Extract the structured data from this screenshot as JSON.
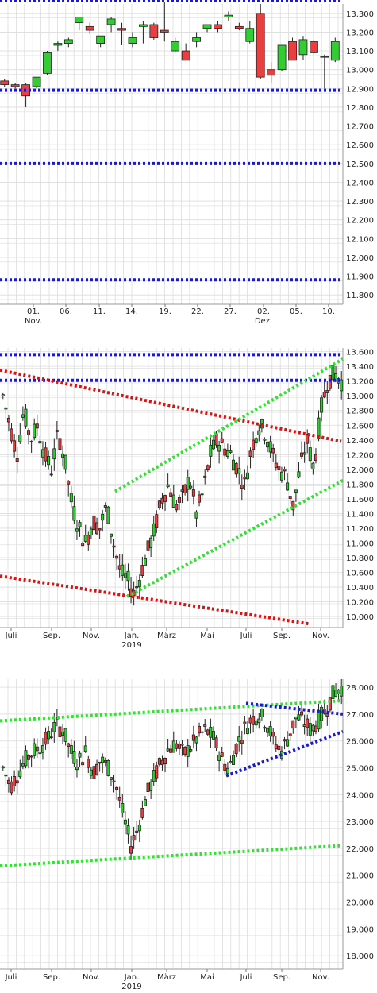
{
  "colors": {
    "up": "#33cc33",
    "down": "#e84040",
    "blue": "#1a1acc",
    "red": "#e01010",
    "green": "#33e033",
    "grid": "#dcdcdc"
  },
  "chart_data": [
    {
      "type": "candlestick",
      "x_ticks": [
        "01.",
        "06.",
        "11.",
        "14.",
        "19.",
        "22.",
        "27.",
        "02.",
        "05.",
        "10."
      ],
      "x_subticks": [
        "Nov.",
        "",
        "",
        "",
        "",
        "",
        "",
        "Dez.",
        "",
        ""
      ],
      "y_ticks": [
        "13.300",
        "13.200",
        "13.100",
        "13.000",
        "12.900",
        "12.800",
        "12.700",
        "12.600",
        "12.500",
        "12.400",
        "12.300",
        "12.200",
        "12.100",
        "12.000",
        "11.900",
        "11.800"
      ],
      "ylim": [
        11.75,
        13.35
      ],
      "candles": [
        {
          "o": 12.94,
          "h": 12.95,
          "l": 12.91,
          "c": 12.92
        },
        {
          "o": 12.92,
          "h": 12.93,
          "l": 12.9,
          "c": 12.91
        },
        {
          "o": 12.92,
          "h": 12.93,
          "l": 12.8,
          "c": 12.86
        },
        {
          "o": 12.91,
          "h": 12.96,
          "l": 12.9,
          "c": 12.96
        },
        {
          "o": 12.98,
          "h": 13.1,
          "l": 12.97,
          "c": 13.09
        },
        {
          "o": 13.13,
          "h": 13.15,
          "l": 13.1,
          "c": 13.14
        },
        {
          "o": 13.14,
          "h": 13.17,
          "l": 13.12,
          "c": 13.16
        },
        {
          "o": 13.25,
          "h": 13.27,
          "l": 13.21,
          "c": 13.28
        },
        {
          "o": 13.23,
          "h": 13.25,
          "l": 13.19,
          "c": 13.21
        },
        {
          "o": 13.14,
          "h": 13.18,
          "l": 13.12,
          "c": 13.18
        },
        {
          "o": 13.24,
          "h": 13.28,
          "l": 13.2,
          "c": 13.27
        },
        {
          "o": 13.22,
          "h": 13.25,
          "l": 13.13,
          "c": 13.21
        },
        {
          "o": 13.14,
          "h": 13.2,
          "l": 13.12,
          "c": 13.17
        },
        {
          "o": 13.23,
          "h": 13.26,
          "l": 13.14,
          "c": 13.24
        },
        {
          "o": 13.24,
          "h": 13.25,
          "l": 13.16,
          "c": 13.17
        },
        {
          "o": 13.21,
          "h": 13.36,
          "l": 13.15,
          "c": 13.2
        },
        {
          "o": 13.1,
          "h": 13.17,
          "l": 13.09,
          "c": 13.15
        },
        {
          "o": 13.1,
          "h": 13.14,
          "l": 13.05,
          "c": 13.05
        },
        {
          "o": 13.15,
          "h": 13.2,
          "l": 13.12,
          "c": 13.17
        },
        {
          "o": 13.22,
          "h": 13.24,
          "l": 13.2,
          "c": 13.24
        },
        {
          "o": 13.24,
          "h": 13.26,
          "l": 13.2,
          "c": 13.22
        },
        {
          "o": 13.28,
          "h": 13.31,
          "l": 13.26,
          "c": 13.29
        },
        {
          "o": 13.23,
          "h": 13.25,
          "l": 13.21,
          "c": 13.22
        },
        {
          "o": 13.15,
          "h": 13.26,
          "l": 13.14,
          "c": 13.22
        },
        {
          "o": 13.3,
          "h": 13.35,
          "l": 12.95,
          "c": 12.96
        },
        {
          "o": 13.0,
          "h": 13.04,
          "l": 12.93,
          "c": 12.97
        },
        {
          "o": 13.0,
          "h": 13.13,
          "l": 12.99,
          "c": 13.13
        },
        {
          "o": 13.15,
          "h": 13.17,
          "l": 13.05,
          "c": 13.05
        },
        {
          "o": 13.08,
          "h": 13.18,
          "l": 13.05,
          "c": 13.16
        },
        {
          "o": 13.15,
          "h": 13.16,
          "l": 13.08,
          "c": 13.09
        },
        {
          "o": 13.07,
          "h": 13.08,
          "l": 12.9,
          "c": 13.07
        },
        {
          "o": 13.05,
          "h": 13.17,
          "l": 13.04,
          "c": 13.15
        }
      ],
      "levels": [
        13.37,
        12.89,
        12.5,
        11.88
      ]
    },
    {
      "type": "candlestick",
      "x_ticks": [
        "Juli",
        "Sep.",
        "Nov.",
        "Jan.",
        "März",
        "Mai",
        "Juli",
        "Sep.",
        "Nov."
      ],
      "x_subticks": [
        "",
        "",
        "",
        "2019",
        "",
        "",
        "",
        "",
        ""
      ],
      "y_ticks": [
        "13.600",
        "13.400",
        "13.200",
        "13.000",
        "12.800",
        "12.600",
        "12.400",
        "12.200",
        "12.000",
        "11.800",
        "11.600",
        "11.400",
        "11.200",
        "11.000",
        "10.800",
        "10.600",
        "10.400",
        "10.200",
        "10.000"
      ],
      "ylim": [
        9.85,
        13.65
      ],
      "path": [
        13.0,
        12.6,
        12.2,
        12.8,
        12.4,
        12.6,
        12.2,
        12.0,
        12.5,
        12.1,
        11.5,
        11.2,
        11.0,
        11.3,
        11.2,
        11.5,
        11.0,
        10.6,
        10.5,
        10.3,
        10.6,
        10.9,
        11.2,
        11.6,
        11.8,
        11.5,
        11.6,
        11.9,
        11.4,
        11.7,
        12.2,
        12.4,
        12.3,
        12.2,
        12.0,
        11.8,
        12.3,
        12.6,
        12.5,
        12.2,
        12.0,
        11.9,
        11.5,
        12.0,
        12.4,
        12.0,
        12.8,
        13.2,
        13.3,
        13.2
      ],
      "levels": [
        13.56,
        13.21
      ],
      "red_lines": [
        [
          [
            0,
            13.35
          ],
          [
            430,
            12.38
          ]
        ],
        [
          [
            0,
            10.55
          ],
          [
            390,
            9.9
          ]
        ]
      ],
      "green_lines": [
        [
          [
            145,
            11.7
          ],
          [
            432,
            13.5
          ]
        ],
        [
          [
            160,
            10.27
          ],
          [
            432,
            11.85
          ]
        ]
      ]
    },
    {
      "type": "candlestick",
      "x_ticks": [
        "Juli",
        "Sep.",
        "Nov.",
        "Jan.",
        "März",
        "Mai",
        "Juli",
        "Sep.",
        "Nov."
      ],
      "x_subticks": [
        "",
        "",
        "",
        "2019",
        "",
        "",
        "",
        "",
        ""
      ],
      "y_ticks": [
        "28.000",
        "27.000",
        "26.000",
        "25.000",
        "24.000",
        "23.000",
        "22.000",
        "21.000",
        "20.000",
        "19.000",
        "18.000"
      ],
      "ylim": [
        17.5,
        28.3
      ],
      "path": [
        25.0,
        24.3,
        24.8,
        25.3,
        25.6,
        25.8,
        26.1,
        26.6,
        26.4,
        25.6,
        25.2,
        25.6,
        24.8,
        25.3,
        25.0,
        24.4,
        23.2,
        22.1,
        22.8,
        23.9,
        24.6,
        25.2,
        25.7,
        25.9,
        25.5,
        25.8,
        26.2,
        26.4,
        26.1,
        25.4,
        24.9,
        25.8,
        26.4,
        26.8,
        27.0,
        26.7,
        26.0,
        25.6,
        26.2,
        26.9,
        26.7,
        26.4,
        26.8,
        27.2,
        27.8,
        28.0
      ],
      "green_lines": [
        [
          [
            0,
            26.75
          ],
          [
            432,
            27.5
          ]
        ],
        [
          [
            0,
            21.35
          ],
          [
            430,
            22.1
          ]
        ]
      ],
      "blue_lines": [
        [
          [
            310,
            27.4
          ],
          [
            432,
            27.0
          ]
        ],
        [
          [
            285,
            24.7
          ],
          [
            432,
            26.35
          ]
        ]
      ]
    }
  ]
}
